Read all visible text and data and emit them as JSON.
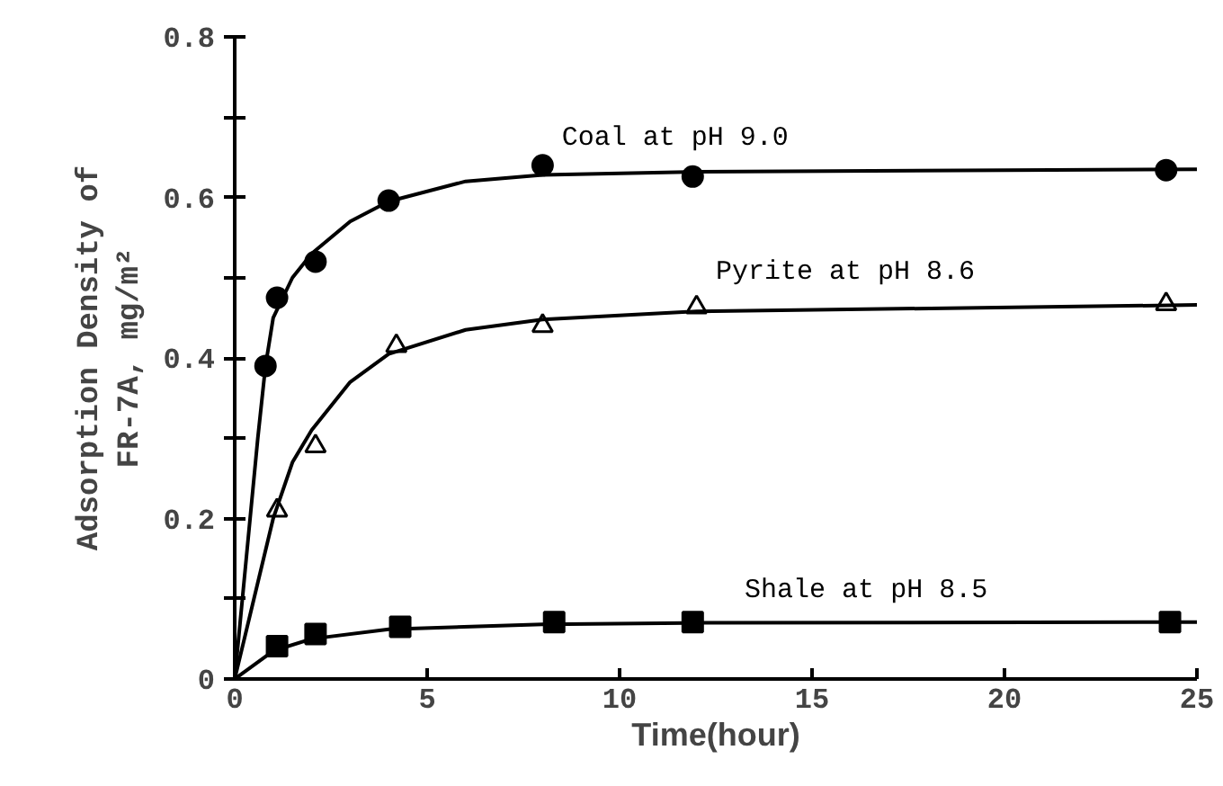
{
  "chart_data": {
    "type": "scatter",
    "xlabel": "Time(hour)",
    "ylabel": "Adsorption Density of\nFR-7A, mg/m²",
    "xlim": [
      0,
      25
    ],
    "ylim": [
      0,
      0.8
    ],
    "xticks": [
      0,
      5,
      10,
      15,
      20,
      25
    ],
    "yticks": [
      0,
      {
        "value": 0.1,
        "label": null
      },
      0.2,
      {
        "value": 0.3,
        "label": null
      },
      0.4,
      {
        "value": 0.5,
        "label": null
      },
      0.6,
      {
        "value": 0.7,
        "label": null
      },
      0.8
    ],
    "grid": false,
    "series": [
      {
        "marker": "circle",
        "color": "#000000",
        "x": [
          0.8,
          1.1,
          2.1,
          4.0,
          8.0,
          11.9,
          24.2
        ],
        "values": [
          0.39,
          0.475,
          0.52,
          0.596,
          0.64,
          0.626,
          0.634
        ]
      },
      {
        "marker": "triangle",
        "color": "#000000",
        "x": [
          1.1,
          2.1,
          4.2,
          8.0,
          12.0,
          24.2
        ],
        "values": [
          0.21,
          0.29,
          0.415,
          0.44,
          0.463,
          0.467
        ]
      },
      {
        "marker": "square",
        "color": "#000000",
        "x": [
          1.1,
          2.1,
          4.3,
          8.3,
          11.9,
          24.3
        ],
        "values": [
          0.041,
          0.056,
          0.065,
          0.071,
          0.071,
          0.071
        ]
      },
      {
        "type": "line",
        "color": "#000000",
        "x": [
          0,
          0.3,
          0.6,
          0.8,
          1,
          1.5,
          2,
          3,
          4,
          6,
          8,
          12,
          25
        ],
        "values": [
          0,
          0.15,
          0.3,
          0.39,
          0.45,
          0.5,
          0.53,
          0.57,
          0.595,
          0.62,
          0.628,
          0.632,
          0.635
        ]
      },
      {
        "type": "line",
        "color": "#000000",
        "x": [
          0,
          0.5,
          1,
          1.5,
          2,
          3,
          4,
          6,
          8,
          12,
          25
        ],
        "values": [
          0,
          0.1,
          0.2,
          0.27,
          0.31,
          0.37,
          0.405,
          0.435,
          0.448,
          0.458,
          0.466
        ]
      },
      {
        "type": "line",
        "color": "#000000",
        "x": [
          0,
          1,
          2,
          4,
          8,
          12,
          25
        ],
        "values": [
          0,
          0.035,
          0.05,
          0.062,
          0.068,
          0.07,
          0.071
        ]
      }
    ],
    "annotations": [
      "Coal at pH 9.0",
      "Pyrite at pH 8.6",
      "Shale at pH 8.5"
    ]
  }
}
